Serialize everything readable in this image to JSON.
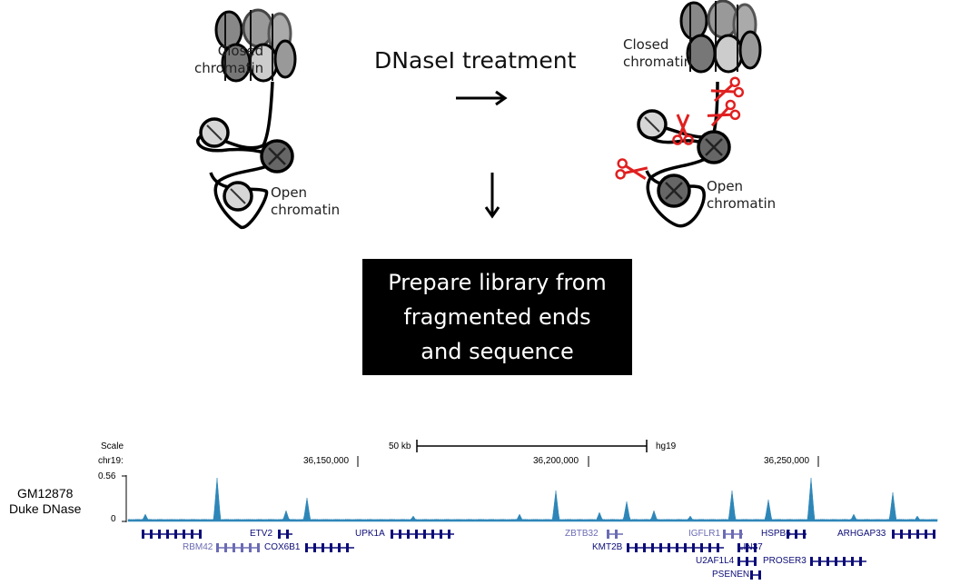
{
  "diagram": {
    "left_panel": {
      "closed_label": [
        "Closed",
        "chromatin"
      ],
      "open_label": [
        "Open",
        "chromatin"
      ]
    },
    "treatment_title": "DNaseI treatment",
    "right_panel": {
      "closed_label": [
        "Closed",
        "chromatin"
      ],
      "open_label": [
        "Open",
        "chromatin"
      ]
    },
    "library_box": [
      "Prepare library from",
      "fragmented ends",
      "and sequence"
    ],
    "colors": {
      "scissors": "#e02020",
      "nucleosome_dark": "#555555",
      "nucleosome_light": "#cccccc",
      "box": "#000000"
    }
  },
  "genome_browser": {
    "scale_label": "Scale",
    "scale_value": "50 kb",
    "assembly": "hg19",
    "chrom_label": "chr19:",
    "positions": [
      "36,150,000",
      "36,200,000",
      "36,250,000"
    ],
    "track": {
      "name_line1": "GM12878",
      "name_line2": "Duke DNase",
      "ymax": "0.56",
      "ymin": "0",
      "color": "#2e86b8"
    },
    "genes": [
      "ETV2",
      "UPK1A",
      "ZBTB32",
      "IGFLR1",
      "HSPB6",
      "ARHGAP33",
      "RBM42",
      "COX6B1",
      "KMT2B",
      "LIN37",
      "U2AF1L4",
      "PROSER3",
      "PSENEN"
    ],
    "gene_colors": {
      "dark": "#0c0c78",
      "light": "#6b6bb5"
    }
  }
}
